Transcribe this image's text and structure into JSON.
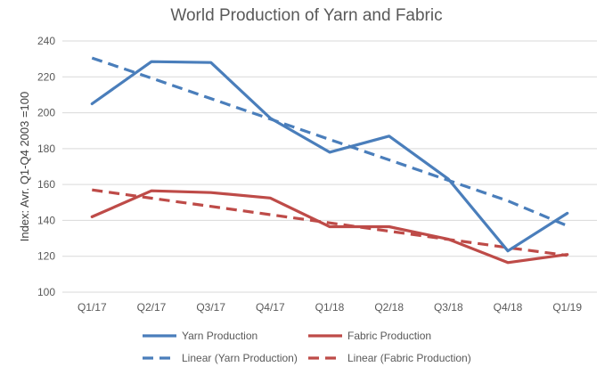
{
  "chart_data": {
    "type": "line",
    "title": "World Production of Yarn and Fabric",
    "xlabel": "",
    "ylabel": "Index: Avr. Q1-Q4 2003 =100",
    "ylim": [
      100,
      240
    ],
    "yticks": [
      100,
      120,
      140,
      160,
      180,
      200,
      220,
      240
    ],
    "grid": true,
    "legend_position": "bottom",
    "categories": [
      "Q1/17",
      "Q2/17",
      "Q3/17",
      "Q4/17",
      "Q1/18",
      "Q2/18",
      "Q3/18",
      "Q4/18",
      "Q1/19"
    ],
    "series": [
      {
        "name": "Yarn Production",
        "color": "#4a7ebb",
        "dashed": false,
        "values": [
          205,
          228.5,
          228,
          197,
          178,
          187,
          163,
          123,
          144
        ]
      },
      {
        "name": "Fabric Production",
        "color": "#be4b48",
        "dashed": false,
        "values": [
          142,
          156.5,
          155.5,
          152.5,
          136.5,
          136.5,
          129.5,
          116.5,
          121
        ]
      },
      {
        "name": "Linear (Yarn Production)",
        "color": "#4a7ebb",
        "dashed": true,
        "values": [
          230.5,
          219.3,
          207.9,
          196.5,
          185.1,
          173.7,
          162.3,
          150.9,
          137
        ]
      },
      {
        "name": "Linear (Fabric Production)",
        "color": "#be4b48",
        "dashed": true,
        "values": [
          157,
          152.4,
          147.8,
          143.2,
          138.6,
          134.0,
          129.4,
          124.8,
          120.5
        ]
      }
    ]
  }
}
